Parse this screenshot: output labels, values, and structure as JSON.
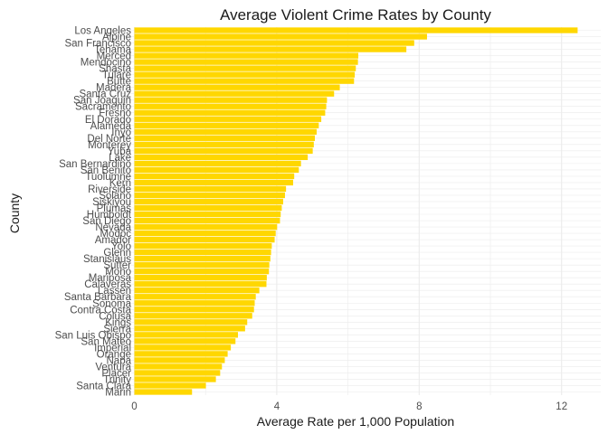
{
  "chart_data": {
    "type": "bar",
    "orientation": "horizontal",
    "title": "Average Violent Crime Rates by County",
    "xlabel": "Average Rate per 1,000 Population",
    "ylabel": "County",
    "xlim": [
      0,
      13
    ],
    "xticks": [
      0,
      4,
      8,
      12
    ],
    "grid": true,
    "legend": "none",
    "bar_color": "#FFD700",
    "grid_color": "#ebebeb",
    "categories": [
      "Los Angeles",
      "Alpine",
      "San Francisco",
      "Tehama",
      "Merced",
      "Mendocino",
      "Shasta",
      "Tulare",
      "Butte",
      "Madera",
      "Santa Cruz",
      "San Joaquin",
      "Sacramento",
      "Fresno",
      "El Dorado",
      "Alameda",
      "Inyo",
      "Del Norte",
      "Monterey",
      "Yuba",
      "Lake",
      "San Bernardino",
      "San Benito",
      "Tuolumne",
      "Kern",
      "Riverside",
      "Solano",
      "Siskiyou",
      "Plumas",
      "Humboldt",
      "San Diego",
      "Nevada",
      "Modoc",
      "Amador",
      "Yolo",
      "Glenn",
      "Stanislaus",
      "Sutter",
      "Mono",
      "Mariposa",
      "Calaveras",
      "Lassen",
      "Santa Barbara",
      "Sonoma",
      "Contra Costa",
      "Colusa",
      "Kings",
      "Sierra",
      "San Luis Obispo",
      "San Mateo",
      "Imperial",
      "Orange",
      "Napa",
      "Ventura",
      "Placer",
      "Trinity",
      "Santa Clara",
      "Marin"
    ],
    "values": [
      12.45,
      8.22,
      7.86,
      7.64,
      6.29,
      6.28,
      6.22,
      6.19,
      6.17,
      5.77,
      5.61,
      5.41,
      5.39,
      5.36,
      5.25,
      5.18,
      5.12,
      5.07,
      5.04,
      5.01,
      4.87,
      4.68,
      4.62,
      4.49,
      4.46,
      4.26,
      4.23,
      4.18,
      4.14,
      4.11,
      4.09,
      4.01,
      3.97,
      3.94,
      3.86,
      3.84,
      3.82,
      3.79,
      3.78,
      3.72,
      3.71,
      3.51,
      3.41,
      3.38,
      3.36,
      3.31,
      3.17,
      3.11,
      2.91,
      2.84,
      2.71,
      2.62,
      2.54,
      2.46,
      2.41,
      2.29,
      2.01,
      1.62
    ]
  }
}
